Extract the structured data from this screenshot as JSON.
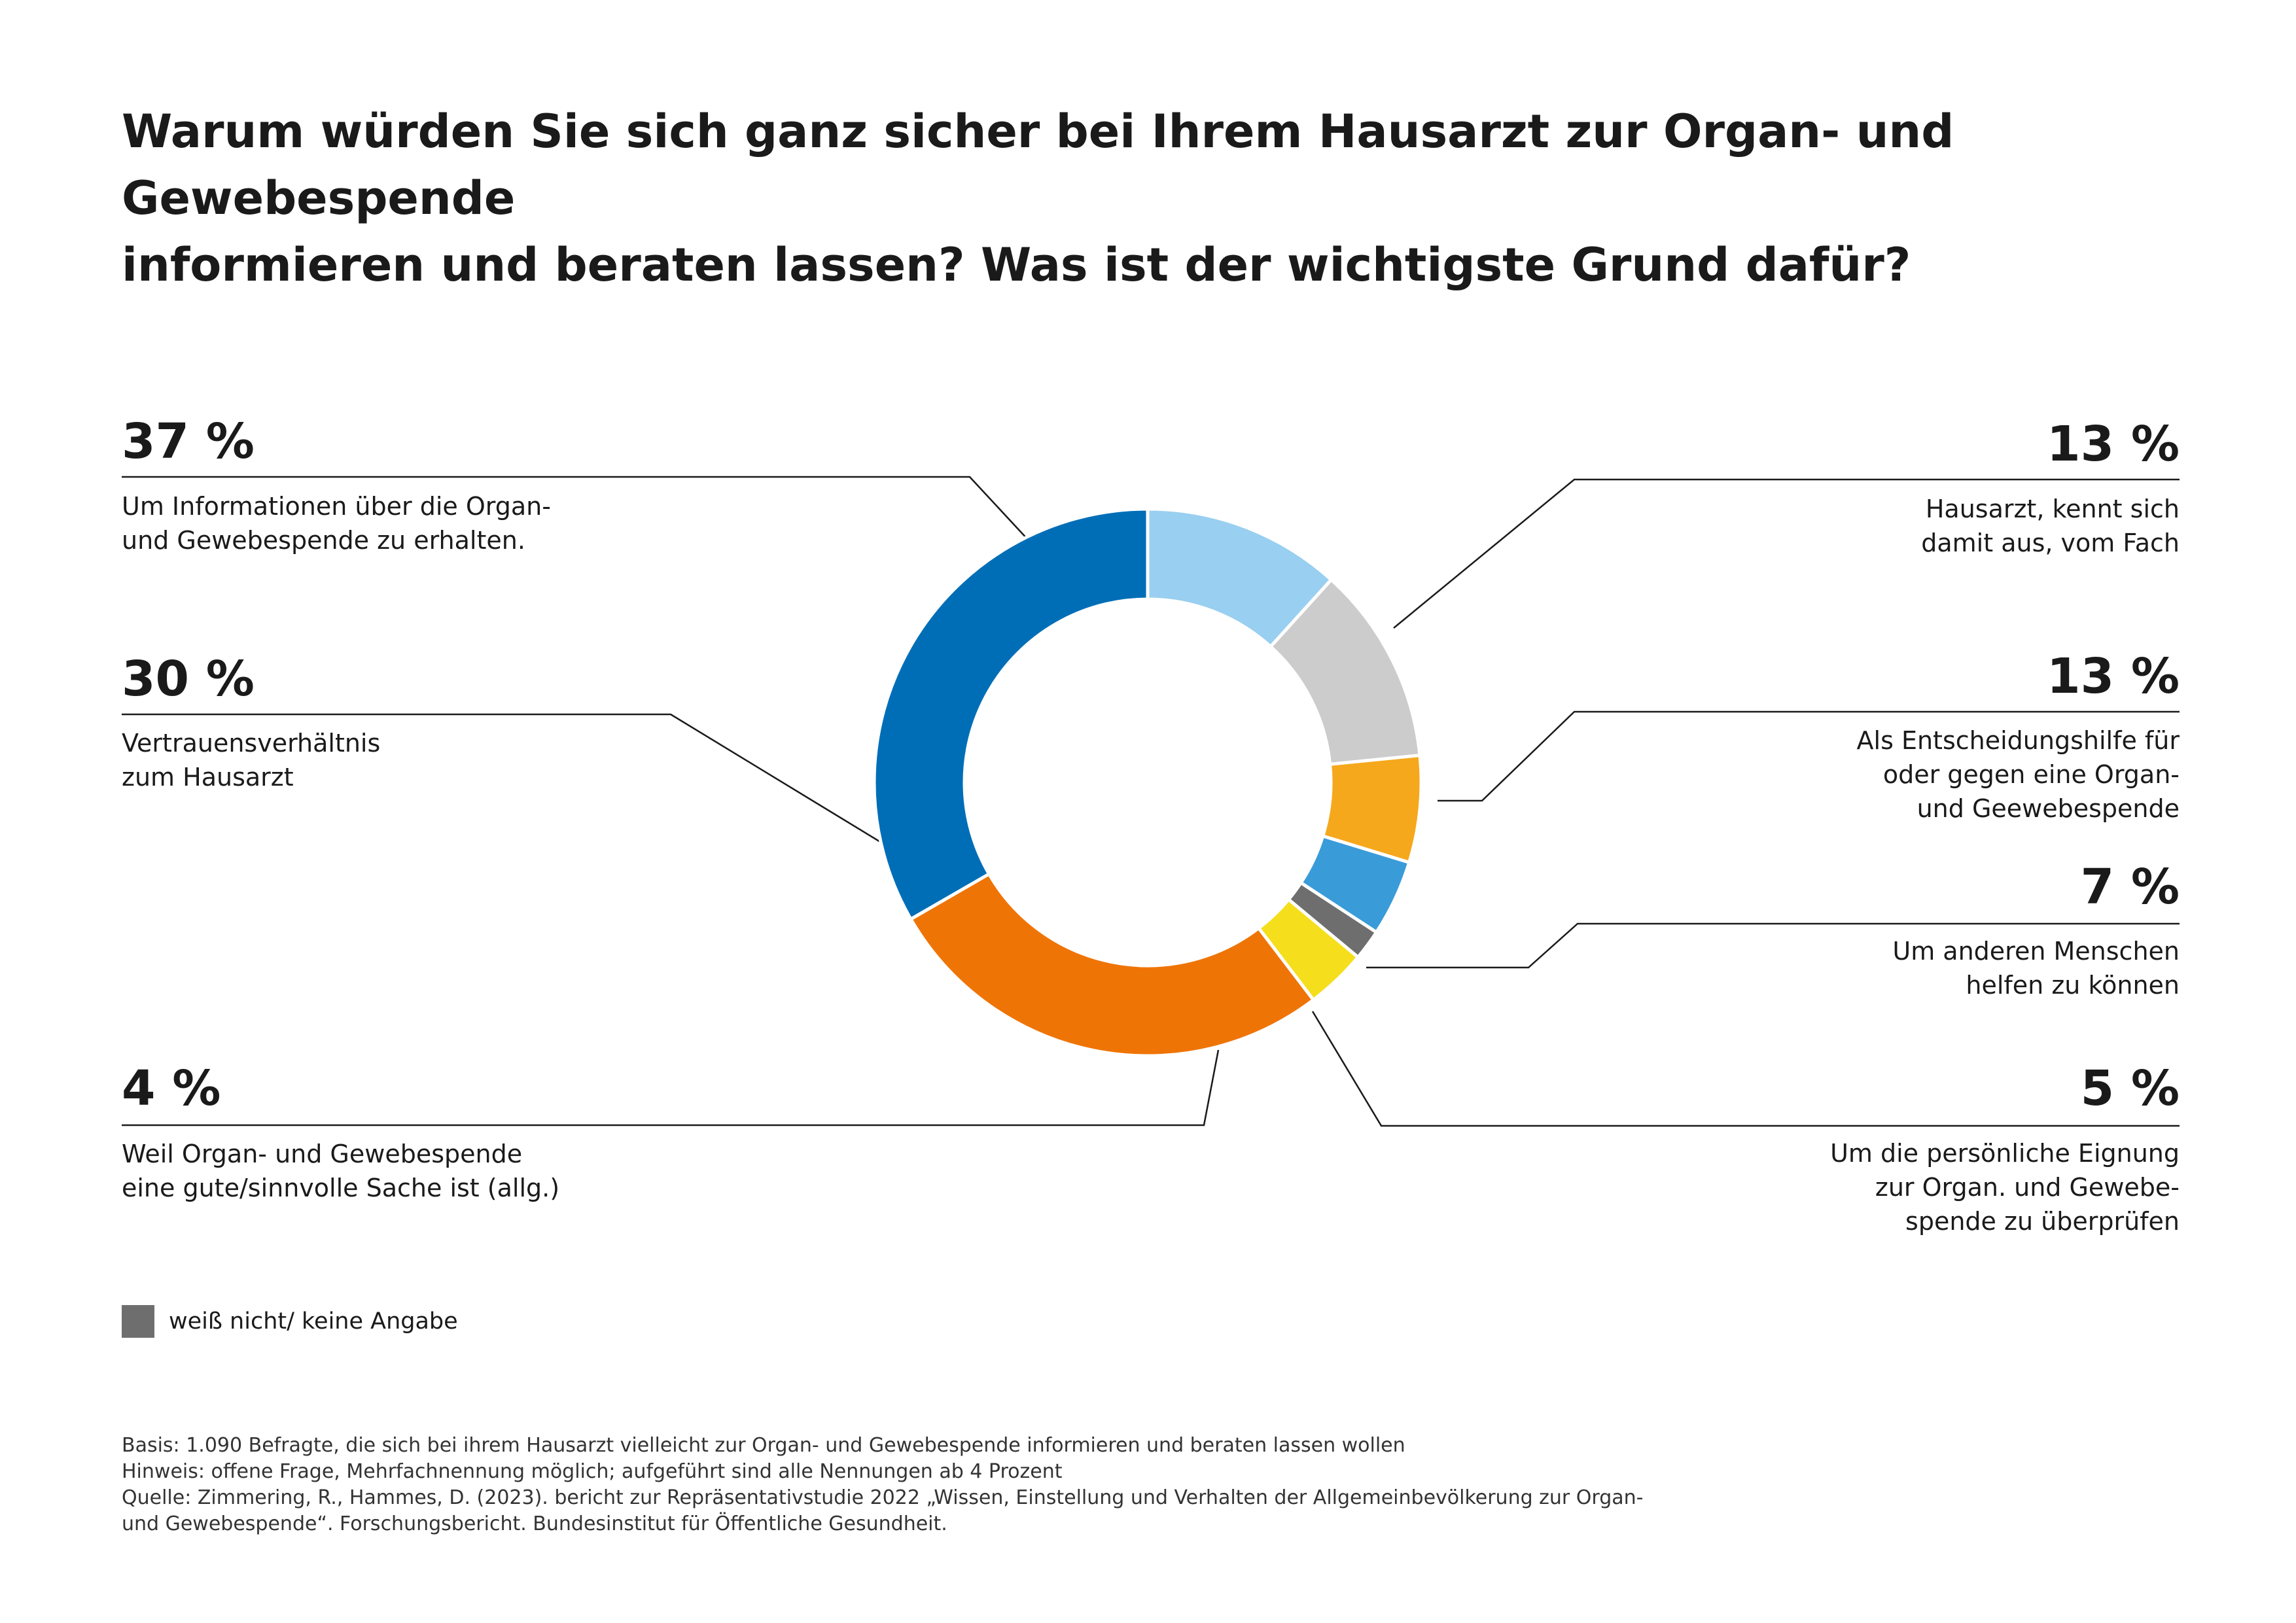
{
  "title": {
    "line1": "Warum würden Sie sich ganz sicher bei Ihrem Hausarzt zur Organ- und Gewebespende",
    "line2": "informieren und beraten lassen? Was ist der wichtigste Grund dafür?"
  },
  "chart_data": {
    "type": "pie",
    "variant": "donut",
    "start": "top, clockwise",
    "slices": [
      {
        "label": "Hausarzt, kennt sich damit aus, vom Fach",
        "value": 13,
        "display": "13 %",
        "color": "#99cff0"
      },
      {
        "label": "Als Entscheidungshilfe für oder gegen eine Organ- und Geewebespende",
        "value": 13,
        "display": "13 %",
        "color": "#cccccc"
      },
      {
        "label": "Um anderen Menschen helfen zu können",
        "value": 7,
        "display": "7 %",
        "color": "#f5a81c"
      },
      {
        "label": "Um die persönliche Eignung zur Organ. und Gewebespende zu überprüfen",
        "value": 5,
        "display": "5 %",
        "color": "#3a9bd9"
      },
      {
        "label": "weiß nicht/ keine Angabe",
        "value": 2,
        "display": "",
        "color": "#6e6e6e"
      },
      {
        "label": "Weil Organ- und Gewebespende eine gute/sinnvolle Sache ist (allg.)",
        "value": 4,
        "display": "4 %",
        "color": "#f5de1c"
      },
      {
        "label": "Vertrauensverhältnis zum Hausarzt",
        "value": 30,
        "display": "30 %",
        "color": "#ef7406"
      },
      {
        "label": "Um Informationen über die Organ- und Gewebespende zu erhalten.",
        "value": 37,
        "display": "37 %",
        "color": "#006eb7"
      }
    ]
  },
  "callouts": {
    "c37": {
      "pct": "37 %",
      "lines": [
        "Um Informationen über die Organ-",
        "und Gewebespende zu erhalten."
      ]
    },
    "c30": {
      "pct": "30 %",
      "lines": [
        "Vertrauensverhältnis",
        "zum Hausarzt"
      ]
    },
    "c4": {
      "pct": "4 %",
      "lines": [
        "Weil Organ- und Gewebespende",
        "eine gute/sinnvolle Sache ist (allg.)"
      ]
    },
    "c13a": {
      "pct": "13 %",
      "lines": [
        "Hausarzt, kennt sich",
        "damit aus, vom Fach"
      ]
    },
    "c13b": {
      "pct": "13 %",
      "lines": [
        "Als Entscheidungshilfe für",
        "oder gegen eine Organ-",
        "und Geewebespende"
      ]
    },
    "c7": {
      "pct": "7 %",
      "lines": [
        "Um anderen Menschen",
        "helfen zu können"
      ]
    },
    "c5": {
      "pct": "5 %",
      "lines": [
        "Um die persönliche Eignung",
        "zur Organ. und Gewebe-",
        "spende zu überprüfen"
      ]
    }
  },
  "legend": {
    "label": "weiß nicht/ keine Angabe",
    "color": "#6e6e6e"
  },
  "footnote": {
    "lines": [
      "Basis: 1.090 Befragte, die sich bei ihrem Hausarzt vielleicht zur Organ- und Gewebespende informieren und beraten lassen wollen",
      "Hinweis: offene Frage, Mehrfachnennung möglich; aufgeführt sind alle Nennungen ab 4 Prozent",
      "Quelle: Zimmering, R., Hammes, D. (2023). bericht zur Repräsentativstudie 2022 „Wissen, Einstellung und Verhalten der Allgemeinbevölkerung zur Organ-",
      "und Gewebespende“. Forschungsbericht. Bundesinstitut für Öffentliche Gesundheit."
    ]
  }
}
